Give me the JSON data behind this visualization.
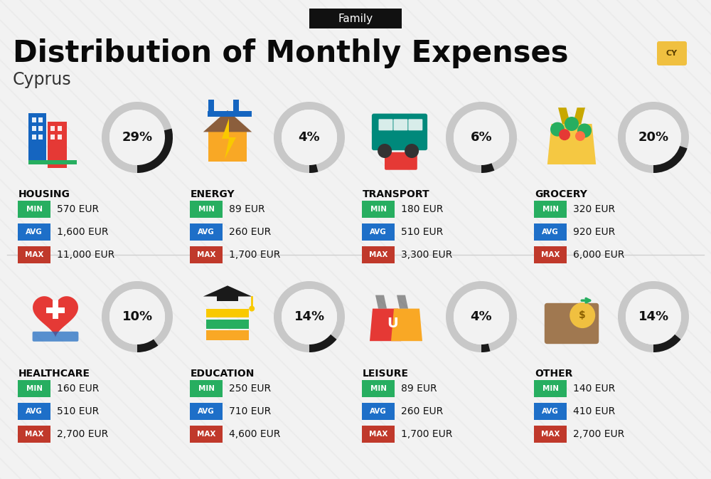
{
  "title_tag": "Family",
  "title_main": "Distribution of Monthly Expenses",
  "subtitle": "Cyprus",
  "bg_color": "#f2f2f2",
  "categories": [
    {
      "name": "HOUSING",
      "pct": 29,
      "min_val": "570 EUR",
      "avg_val": "1,600 EUR",
      "max_val": "11,000 EUR",
      "row": 0,
      "col": 0,
      "icon_color1": "#1565c0",
      "icon_color2": "#e53935"
    },
    {
      "name": "ENERGY",
      "pct": 4,
      "min_val": "89 EUR",
      "avg_val": "260 EUR",
      "max_val": "1,700 EUR",
      "row": 0,
      "col": 1,
      "icon_color1": "#f9a825",
      "icon_color2": "#1565c0"
    },
    {
      "name": "TRANSPORT",
      "pct": 6,
      "min_val": "180 EUR",
      "avg_val": "510 EUR",
      "max_val": "3,300 EUR",
      "row": 0,
      "col": 2,
      "icon_color1": "#00897b",
      "icon_color2": "#e53935"
    },
    {
      "name": "GROCERY",
      "pct": 20,
      "min_val": "320 EUR",
      "avg_val": "920 EUR",
      "max_val": "6,000 EUR",
      "row": 0,
      "col": 3,
      "icon_color1": "#f9a825",
      "icon_color2": "#43a047"
    },
    {
      "name": "HEALTHCARE",
      "pct": 10,
      "min_val": "160 EUR",
      "avg_val": "510 EUR",
      "max_val": "2,700 EUR",
      "row": 1,
      "col": 0,
      "icon_color1": "#e53935",
      "icon_color2": "#1565c0"
    },
    {
      "name": "EDUCATION",
      "pct": 14,
      "min_val": "250 EUR",
      "avg_val": "710 EUR",
      "max_val": "4,600 EUR",
      "row": 1,
      "col": 1,
      "icon_color1": "#1565c0",
      "icon_color2": "#f9a825"
    },
    {
      "name": "LEISURE",
      "pct": 4,
      "min_val": "89 EUR",
      "avg_val": "260 EUR",
      "max_val": "1,700 EUR",
      "row": 1,
      "col": 2,
      "icon_color1": "#e53935",
      "icon_color2": "#f9a825"
    },
    {
      "name": "OTHER",
      "pct": 14,
      "min_val": "140 EUR",
      "avg_val": "410 EUR",
      "max_val": "2,700 EUR",
      "row": 1,
      "col": 3,
      "icon_color1": "#8d6e63",
      "icon_color2": "#f9a825"
    }
  ],
  "min_color": "#27ae60",
  "avg_color": "#1e6fc8",
  "max_color": "#c0392b",
  "donut_bg": "#c8c8c8",
  "donut_fg": "#1a1a1a",
  "header_bg": "#111111",
  "header_fg": "#ffffff",
  "stripe_color": "#ebebeb",
  "divider_color": "#d0d0d0"
}
